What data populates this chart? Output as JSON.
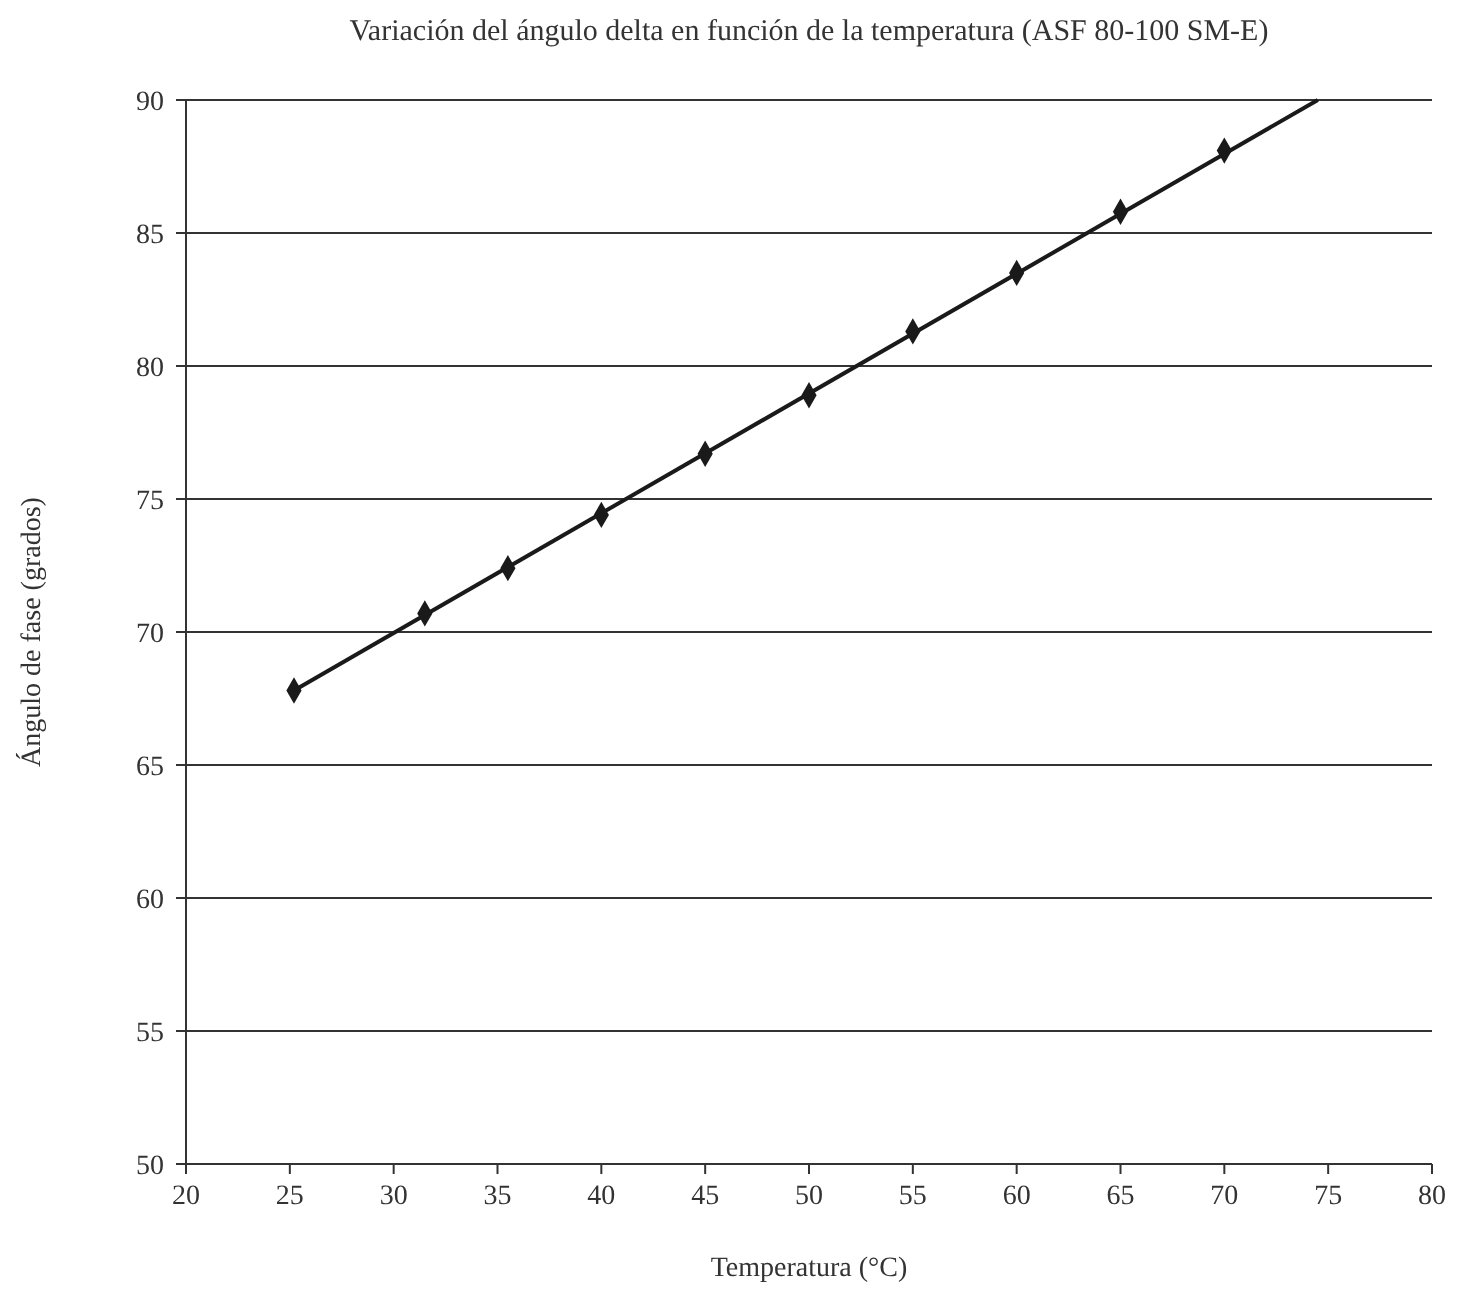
{
  "chart_data": {
    "type": "scatter",
    "title": "Variación del ángulo delta en función de la temperatura (ASF 80-100 SM-E)",
    "xlabel": "Temperatura (°C)",
    "ylabel": "Ángulo de fase (grados)",
    "x": [
      25.2,
      31.5,
      35.5,
      40,
      45,
      50,
      55,
      60,
      65,
      70
    ],
    "series": [
      {
        "color": "#1a1a1a",
        "marker": "diamond",
        "values": [
          67.8,
          70.7,
          72.4,
          74.4,
          76.7,
          78.9,
          81.3,
          83.5,
          85.8,
          88.1
        ]
      },
      {
        "type": "line",
        "color": "#1a1a1a",
        "marker": "none",
        "line_style": "solid",
        "x": [
          25.2,
          74.5
        ],
        "values": [
          67.8,
          90
        ]
      }
    ],
    "xlim": [
      20,
      80
    ],
    "xticks": [
      20,
      25,
      30,
      35,
      40,
      45,
      50,
      55,
      60,
      65,
      70,
      75,
      80
    ],
    "ylim": [
      50,
      90
    ],
    "yticks": [
      50,
      55,
      60,
      65,
      70,
      75,
      80,
      85,
      90
    ],
    "grid": "y"
  }
}
